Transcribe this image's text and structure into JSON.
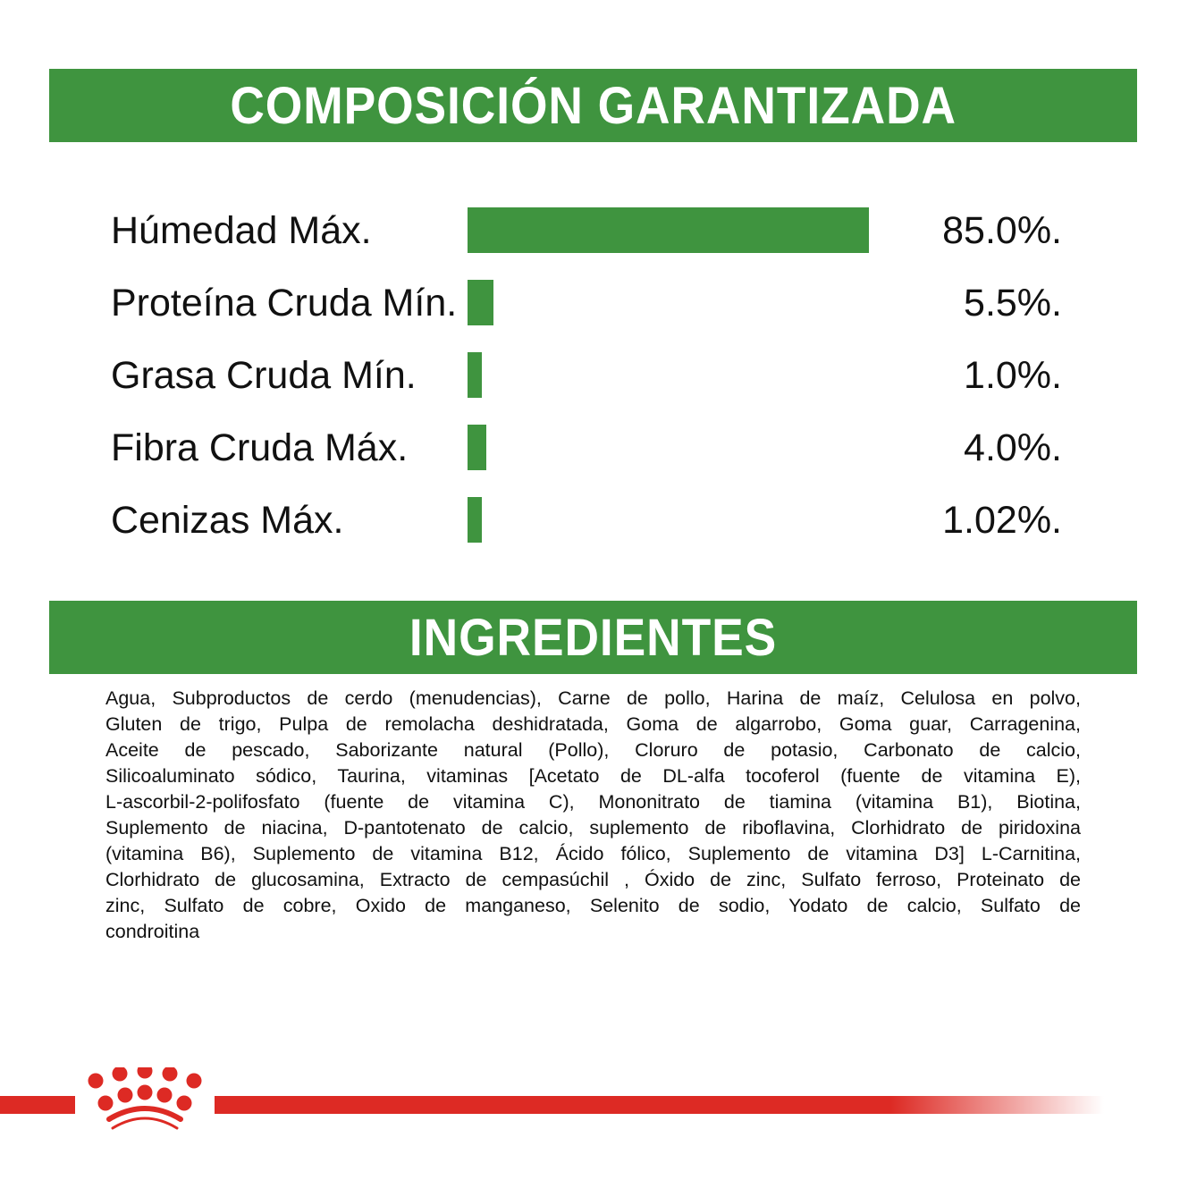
{
  "headers": {
    "composition": "COMPOSICIÓN GARANTIZADA",
    "ingredients": "INGREDIENTES"
  },
  "chart_data": {
    "type": "bar",
    "orientation": "horizontal",
    "title": "COMPOSICIÓN GARANTIZADA",
    "categories": [
      "Húmedad Máx.",
      "Proteína Cruda Mín.",
      "Grasa Cruda Mín.",
      "Fibra Cruda Máx.",
      "Cenizas Máx."
    ],
    "values": [
      85.0,
      5.5,
      1.0,
      4.0,
      1.02
    ],
    "value_labels": [
      "85.0%.",
      "5.5%.",
      "1.0%.",
      "4.0%.",
      "1.02%."
    ],
    "unit": "%",
    "bar_color": "#3f943f"
  },
  "ingredients_lines": [
    "Agua, Subproductos de cerdo (menudencias), Carne de pollo, Harina de maíz, Celulosa en polvo,",
    "Gluten de trigo, Pulpa de remolacha deshidratada, Goma de algarrobo, Goma guar, Carragenina,",
    "Aceite de pescado, Saborizante natural (Pollo), Cloruro de potasio, Carbonato de calcio,",
    "Silicoaluminato sódico, Taurina, vitaminas [Acetato de DL-alfa tocoferol (fuente de vitamina E),",
    "L-ascorbil-2-polifosfato (fuente de vitamina C), Mononitrato de tiamina (vitamina B1), Biotina,",
    "Suplemento de niacina, D-pantotenato de calcio, suplemento de riboflavina, Clorhidrato de piridoxina",
    "(vitamina B6), Suplemento de vitamina B12, Ácido fólico, Suplemento de vitamina D3] L-Carnitina,",
    "Clorhidrato de glucosamina, Extracto de cempasúchil , Óxido de zinc, Sulfato ferroso, Proteinato de",
    "zinc, Sulfato de cobre, Oxido de manganeso, Selenito de sodio, Yodato de calcio, Sulfato de",
    "condroitina"
  ],
  "colors": {
    "green": "#3f943f",
    "red": "#dd2a24"
  }
}
